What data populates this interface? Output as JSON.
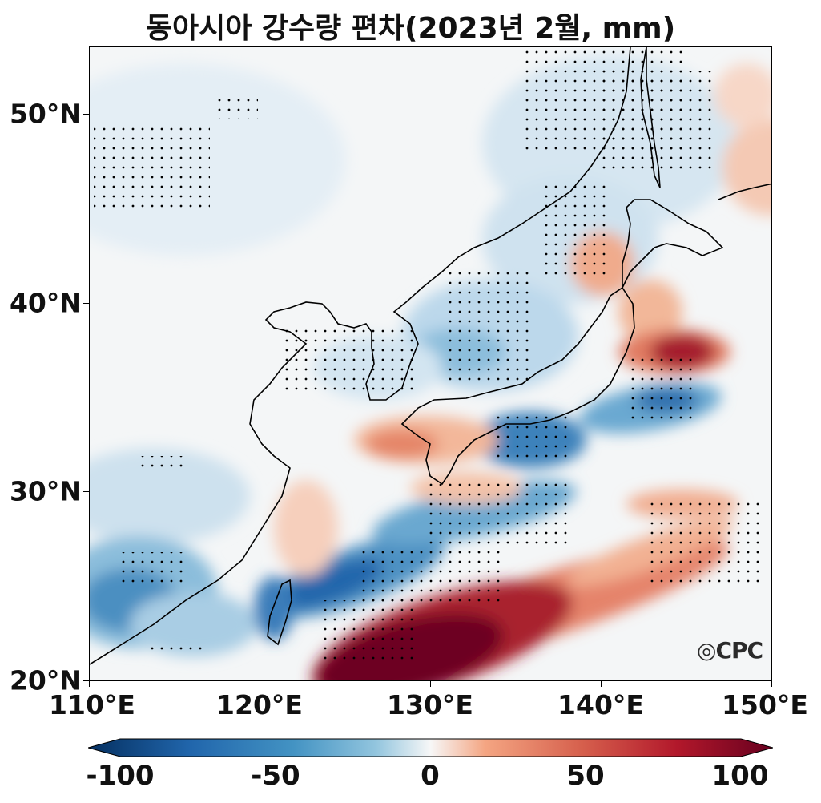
{
  "title": "동아시아 강수량 편차(2023년 2월, mm)",
  "map": {
    "lon_range": [
      110,
      150
    ],
    "lat_range": [
      20,
      53.5
    ],
    "x_ticks": [
      "110°E",
      "120°E",
      "130°E",
      "140°E",
      "150°E"
    ],
    "y_ticks": [
      "20°N",
      "30°N",
      "40°N",
      "50°N"
    ],
    "stippling": "statistically significant grid points",
    "colormap": "RdBu_r"
  },
  "colorbar": {
    "ticks": [
      "-100",
      "-50",
      "0",
      "50",
      "100"
    ],
    "min": -100,
    "max": 100,
    "extend": "both",
    "colors": {
      "neg_max": "#053061",
      "neg_mid": "#4393c3",
      "zero": "#f7f7f7",
      "pos_mid": "#f4a582",
      "pos_max": "#67001f"
    }
  },
  "logo": "CPC"
}
